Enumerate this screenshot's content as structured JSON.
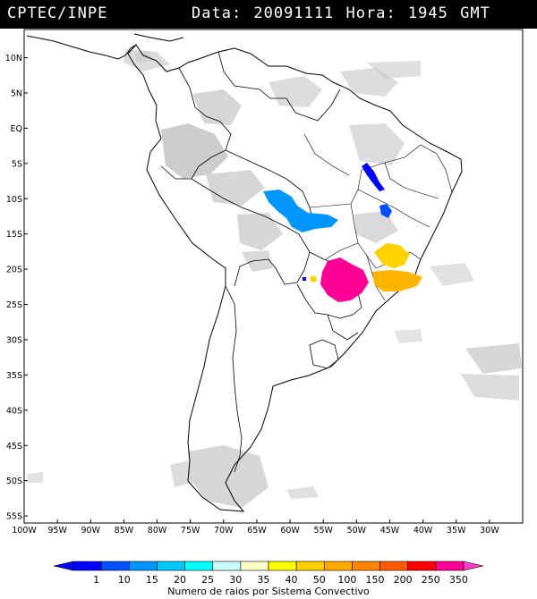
{
  "header": {
    "brand": "CPTEC/INPE",
    "info": "Data: 20091111 Hora: 1945 GMT"
  },
  "map": {
    "lon_range": [
      -100,
      -25
    ],
    "lat_range": [
      -56,
      14
    ],
    "lat_ticks": [
      {
        "v": 10,
        "label": "10N"
      },
      {
        "v": 5,
        "label": "5N"
      },
      {
        "v": 0,
        "label": "EQ"
      },
      {
        "v": -5,
        "label": "5S"
      },
      {
        "v": -10,
        "label": "10S"
      },
      {
        "v": -15,
        "label": "15S"
      },
      {
        "v": -20,
        "label": "20S"
      },
      {
        "v": -25,
        "label": "25S"
      },
      {
        "v": -30,
        "label": "30S"
      },
      {
        "v": -35,
        "label": "35S"
      },
      {
        "v": -40,
        "label": "40S"
      },
      {
        "v": -45,
        "label": "45S"
      },
      {
        "v": -50,
        "label": "50S"
      },
      {
        "v": -55,
        "label": "55S"
      }
    ],
    "lon_ticks": [
      {
        "v": -100,
        "label": "100W"
      },
      {
        "v": -95,
        "label": "95W"
      },
      {
        "v": -90,
        "label": "90W"
      },
      {
        "v": -85,
        "label": "85W"
      },
      {
        "v": -80,
        "label": "80W"
      },
      {
        "v": -75,
        "label": "75W"
      },
      {
        "v": -70,
        "label": "70W"
      },
      {
        "v": -65,
        "label": "65W"
      },
      {
        "v": -60,
        "label": "60W"
      },
      {
        "v": -55,
        "label": "55W"
      },
      {
        "v": -50,
        "label": "50W"
      },
      {
        "v": -45,
        "label": "45W"
      },
      {
        "v": -40,
        "label": "40W"
      },
      {
        "v": -35,
        "label": "35W"
      },
      {
        "v": -30,
        "label": "30W"
      }
    ]
  },
  "legend": {
    "title": "Numero de raios por Sistema Convectivo",
    "bins": [
      {
        "label": "1",
        "color": "#0000ff"
      },
      {
        "label": "10",
        "color": "#0050ff"
      },
      {
        "label": "15",
        "color": "#0096ff"
      },
      {
        "label": "20",
        "color": "#00c8ff"
      },
      {
        "label": "25",
        "color": "#00ffff"
      },
      {
        "label": "30",
        "color": "#c8ffff"
      },
      {
        "label": "35",
        "color": "#ffffc8"
      },
      {
        "label": "40",
        "color": "#ffff00"
      },
      {
        "label": "50",
        "color": "#ffd200"
      },
      {
        "label": "100",
        "color": "#ffaa00"
      },
      {
        "label": "150",
        "color": "#ff8200"
      },
      {
        "label": "200",
        "color": "#ff5a00"
      },
      {
        "label": "250",
        "color": "#ff0000"
      },
      {
        "label": "350",
        "color": "#ff0096"
      }
    ],
    "end_color": "#ff3cc8"
  }
}
